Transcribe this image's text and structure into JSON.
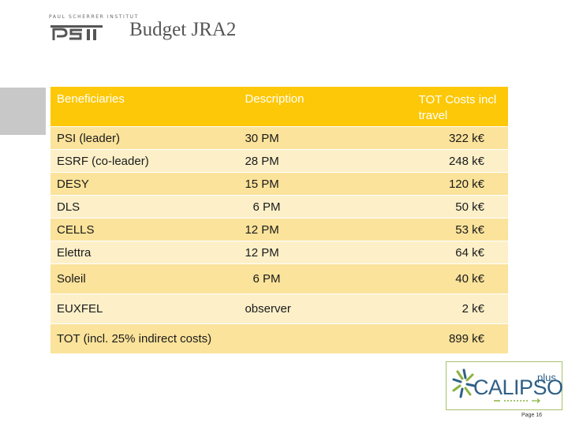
{
  "logo": {
    "tagline": "PAUL SCHERRER INSTITUT",
    "brand": "PSI"
  },
  "slide": {
    "title": "Budget JRA2",
    "page_label": "Page 16"
  },
  "table": {
    "headers": [
      "Beneficiaries",
      "Description",
      "TOT Costs incl travel"
    ],
    "rows": [
      {
        "beneficiary": "PSI (leader)",
        "description": "30 PM",
        "cost": "322 k€"
      },
      {
        "beneficiary": "ESRF (co-leader)",
        "description": "28 PM",
        "cost": "248 k€"
      },
      {
        "beneficiary": "DESY",
        "description": "15 PM",
        "cost": "120 k€"
      },
      {
        "beneficiary": "DLS",
        "description": "6 PM",
        "cost": "50 k€"
      },
      {
        "beneficiary": "CELLS",
        "description": "12 PM",
        "cost": "53 k€"
      },
      {
        "beneficiary": "Elettra",
        "description": "12 PM",
        "cost": "64 k€"
      },
      {
        "beneficiary": "Soleil",
        "description": "6 PM",
        "cost": "40 k€"
      },
      {
        "beneficiary": "EUXFEL",
        "description": "observer",
        "cost": "2 k€"
      },
      {
        "beneficiary": "TOT (incl. 25% indirect costs)",
        "description": "",
        "cost": "899 k€"
      }
    ]
  },
  "calipso_logo": {
    "name": "CALIPSO",
    "suffix": "plus"
  },
  "colors": {
    "header": "#fcc807",
    "row_odd": "#fbe39b",
    "row_even": "#fdf0c9",
    "calipso_blue": "#2f5f86",
    "calipso_green": "#8bb33f"
  }
}
